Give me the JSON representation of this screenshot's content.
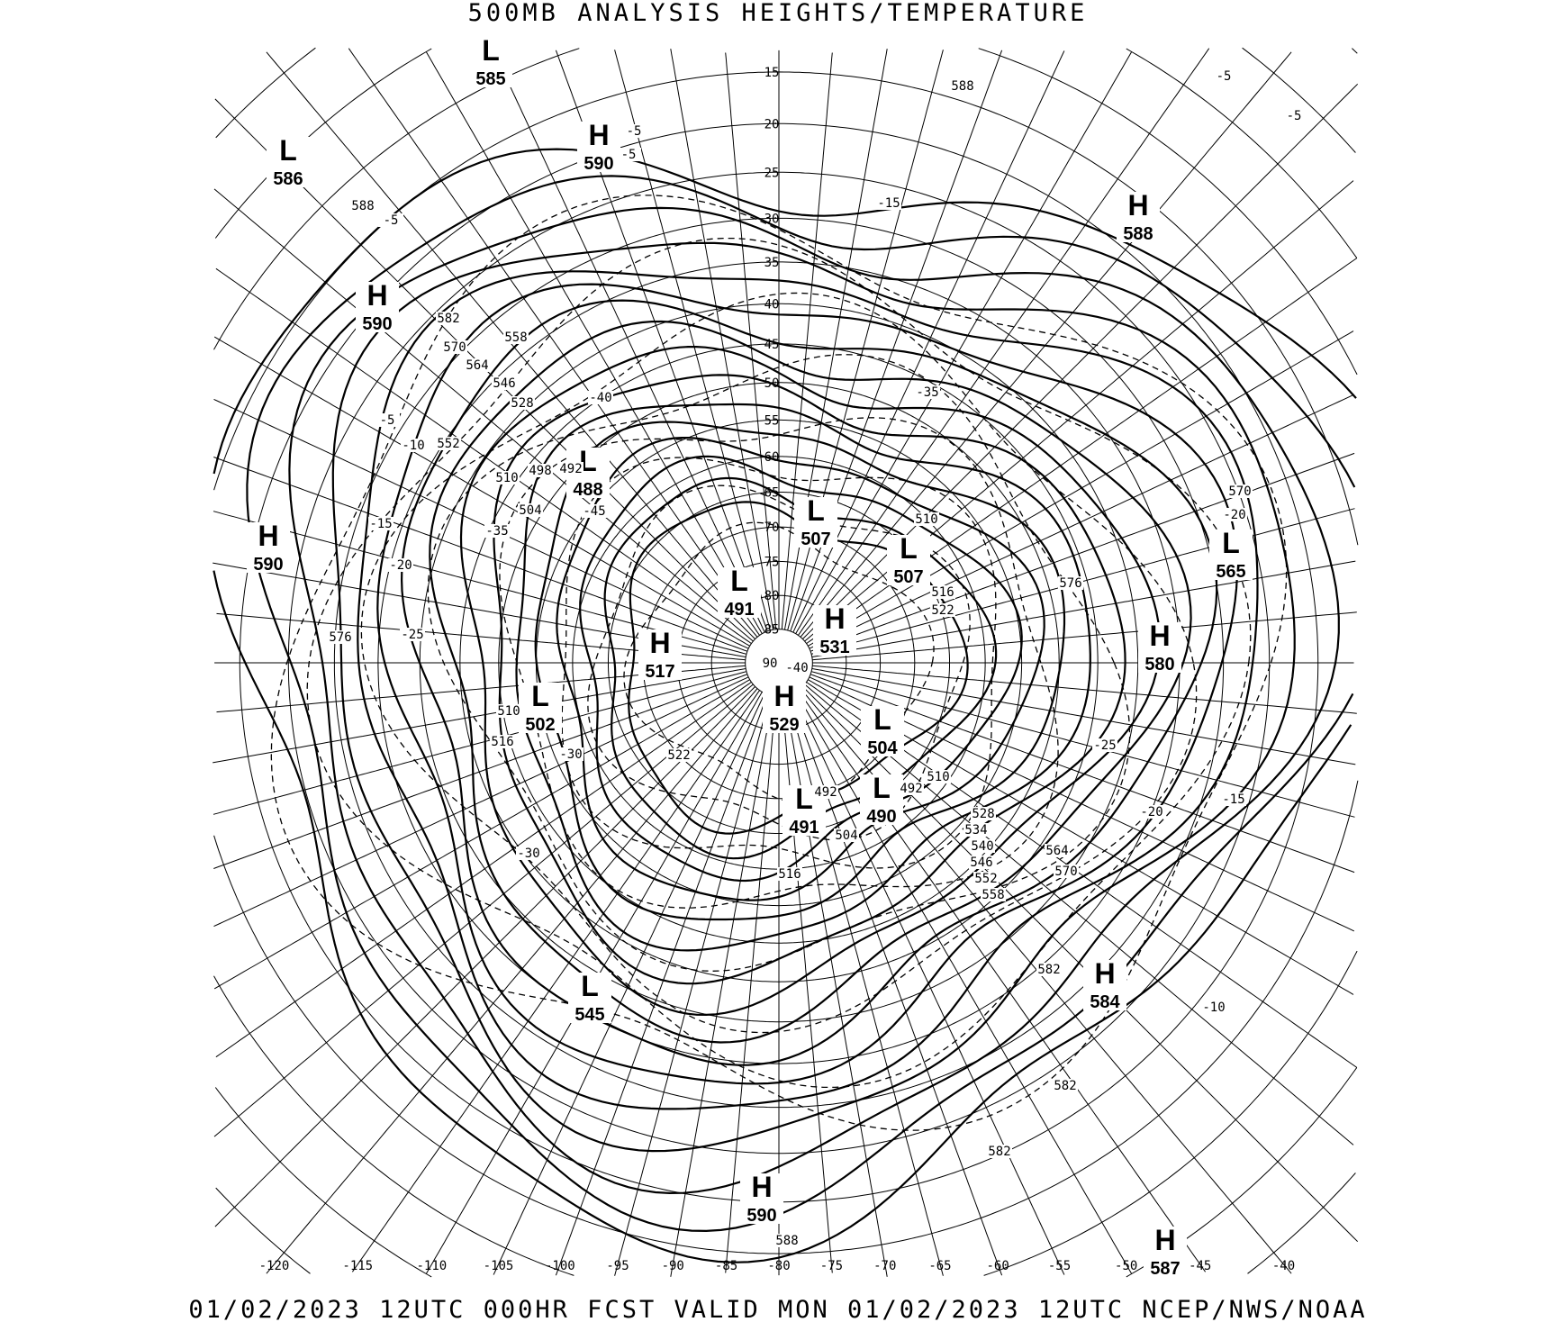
{
  "header": {
    "title": "500MB ANALYSIS  HEIGHTS/TEMPERATURE"
  },
  "footer": {
    "text": "01/02/2023 12UTC 000HR FCST VALID MON 01/02/2023 12UTC  NCEP/NWS/NOAA"
  },
  "map": {
    "projection": "north polar stereographic",
    "grid_spacing_deg": 5,
    "pole_label": "90",
    "pole_temp_label": "-40",
    "latitude_labels": [
      "85",
      "80",
      "75",
      "70",
      "65",
      "60",
      "55",
      "50",
      "45",
      "40",
      "35",
      "30",
      "25",
      "20",
      "15"
    ],
    "longitude_labels": [
      "-120",
      "-115",
      "-110",
      "-105",
      "-100",
      "-95",
      "-90",
      "-85",
      "-80",
      "-75",
      "-70",
      "-65",
      "-60",
      "-55",
      "-50",
      "-45",
      "-40"
    ],
    "centers": [
      {
        "type": "L",
        "value": "585"
      },
      {
        "type": "H",
        "value": "590"
      },
      {
        "type": "L",
        "value": "586"
      },
      {
        "type": "H",
        "value": "588"
      },
      {
        "type": "H",
        "value": "590"
      },
      {
        "type": "L",
        "value": "488"
      },
      {
        "type": "H",
        "value": "590"
      },
      {
        "type": "L",
        "value": "507"
      },
      {
        "type": "L",
        "value": "507"
      },
      {
        "type": "L",
        "value": "565"
      },
      {
        "type": "L",
        "value": "491"
      },
      {
        "type": "H",
        "value": "531"
      },
      {
        "type": "H",
        "value": "580"
      },
      {
        "type": "H",
        "value": "517"
      },
      {
        "type": "L",
        "value": "502"
      },
      {
        "type": "H",
        "value": "529"
      },
      {
        "type": "L",
        "value": "504"
      },
      {
        "type": "L",
        "value": "490"
      },
      {
        "type": "L",
        "value": "491"
      },
      {
        "type": "H",
        "value": "584"
      },
      {
        "type": "L",
        "value": "545"
      },
      {
        "type": "H",
        "value": "590"
      },
      {
        "type": "H",
        "value": "587"
      }
    ],
    "height_labels": [
      "588",
      "588",
      "582",
      "576",
      "576",
      "570",
      "570",
      "564",
      "558",
      "552",
      "546",
      "540",
      "534",
      "528",
      "582",
      "582",
      "582",
      "588",
      "516",
      "522",
      "516",
      "510",
      "504",
      "510",
      "498",
      "492",
      "552",
      "558",
      "570",
      "564",
      "546",
      "528",
      "510",
      "504",
      "492",
      "492",
      "510",
      "516",
      "522"
    ],
    "temperature_labels": [
      "-5",
      "-5",
      "-5",
      "-5",
      "-5",
      "-15",
      "-35",
      "-40",
      "-20",
      "-25",
      "-15",
      "-20",
      "-10",
      "-30",
      "-30",
      "-25",
      "-20",
      "-15",
      "-10",
      "-5",
      "-35",
      "-45"
    ],
    "line_color": "#000000"
  }
}
